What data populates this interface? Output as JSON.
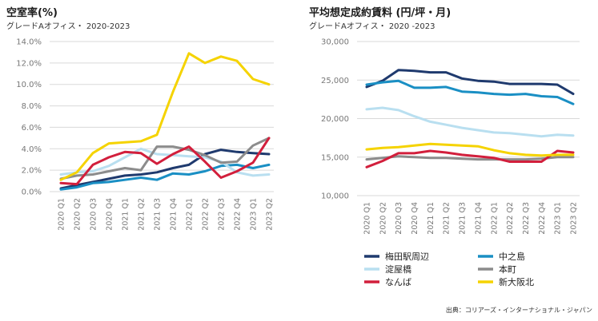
{
  "chart_data": [
    {
      "type": "line",
      "title": "空室率(%)",
      "subtitle": "グレードAオフィス・ 2020-2023",
      "ylim": [
        0,
        14
      ],
      "yticks": [
        "0.0%",
        "2.0%",
        "4.0%",
        "6.0%",
        "8.0%",
        "10.0%",
        "12.0%",
        "14.0%"
      ],
      "ytick_values": [
        0,
        2,
        4,
        6,
        8,
        10,
        12,
        14
      ],
      "categories": [
        "2020 Q1",
        "2020 Q2",
        "2020 Q3",
        "2020 Q4",
        "2021 Q1",
        "2021 Q2",
        "2021 Q3",
        "2021 Q4",
        "2022 Q1",
        "2022 Q2",
        "2022 Q3",
        "2022 Q4",
        "2023 Q1",
        "2023 Q2"
      ],
      "series": [
        {
          "name": "梅田駅周辺",
          "color": "#1f3a6e",
          "values": [
            0.3,
            0.6,
            0.9,
            1.2,
            1.5,
            1.6,
            1.8,
            2.2,
            2.5,
            3.5,
            3.9,
            3.7,
            3.6,
            3.5
          ]
        },
        {
          "name": "中之島",
          "color": "#1a8fc4",
          "values": [
            0.2,
            0.4,
            0.8,
            0.9,
            1.1,
            1.3,
            1.1,
            1.7,
            1.6,
            1.9,
            2.4,
            2.5,
            2.2,
            2.5
          ]
        },
        {
          "name": "淀屋橋",
          "color": "#b9dff0",
          "values": [
            1.6,
            1.8,
            1.9,
            2.4,
            3.2,
            4.0,
            3.5,
            3.4,
            3.3,
            3.2,
            2.8,
            1.8,
            1.5,
            1.6
          ]
        },
        {
          "name": "本町",
          "color": "#8c8c8c",
          "values": [
            1.2,
            1.5,
            1.6,
            1.9,
            2.2,
            2.0,
            4.2,
            4.2,
            3.9,
            3.4,
            2.7,
            2.8,
            4.3,
            5.0
          ]
        },
        {
          "name": "なんば",
          "color": "#d21f3c",
          "values": [
            0.8,
            0.7,
            2.5,
            3.2,
            3.7,
            3.6,
            2.6,
            3.5,
            4.2,
            2.8,
            1.3,
            1.9,
            2.7,
            5.0
          ]
        },
        {
          "name": "新大阪北",
          "color": "#f5d300",
          "values": [
            1.1,
            1.8,
            3.6,
            4.5,
            4.6,
            4.7,
            5.3,
            9.3,
            12.9,
            12.0,
            12.6,
            12.2,
            10.5,
            10.0
          ]
        }
      ]
    },
    {
      "type": "line",
      "title": "平均想定成約賃料 (円/坪・月)",
      "subtitle": "グレードAオフィス・ 2020 -2023",
      "ylim": [
        10000,
        30000
      ],
      "yticks": [
        "10,000",
        "15,000",
        "20,000",
        "25,000",
        "30,000"
      ],
      "ytick_values": [
        10000,
        15000,
        20000,
        25000,
        30000
      ],
      "categories": [
        "2020 Q1",
        "2020 Q2",
        "2020 Q3",
        "2020 Q4",
        "2021 Q1",
        "2021 Q2",
        "2021 Q3",
        "2021 Q4",
        "2022 Q1",
        "2022 Q2",
        "2022 Q3",
        "2022 Q4",
        "2023 Q1",
        "2023 Q2"
      ],
      "series": [
        {
          "name": "梅田駅周辺",
          "color": "#1f3a6e",
          "values": [
            24100,
            24900,
            26300,
            26200,
            26000,
            26000,
            25200,
            24900,
            24800,
            24500,
            24500,
            24500,
            24400,
            23200
          ]
        },
        {
          "name": "中之島",
          "color": "#1a8fc4",
          "values": [
            24400,
            24700,
            24900,
            24000,
            24000,
            24100,
            23500,
            23400,
            23200,
            23100,
            23200,
            22900,
            22800,
            21900
          ]
        },
        {
          "name": "淀屋橋",
          "color": "#b9dff0",
          "values": [
            21200,
            21400,
            21100,
            20300,
            19600,
            19200,
            18800,
            18500,
            18200,
            18100,
            17900,
            17700,
            17900,
            17800
          ]
        },
        {
          "name": "本町",
          "color": "#8c8c8c",
          "values": [
            14700,
            14900,
            15100,
            15000,
            14900,
            14900,
            14800,
            14700,
            14700,
            14700,
            14700,
            14800,
            15000,
            15000
          ]
        },
        {
          "name": "なんば",
          "color": "#d21f3c",
          "values": [
            13700,
            14500,
            15500,
            15500,
            15800,
            15600,
            15300,
            15100,
            14900,
            14400,
            14400,
            14400,
            15800,
            15600
          ]
        },
        {
          "name": "新大阪北",
          "color": "#f5d300",
          "values": [
            16000,
            16200,
            16300,
            16500,
            16700,
            16600,
            16500,
            16400,
            15900,
            15500,
            15300,
            15200,
            15300,
            15300
          ]
        }
      ]
    }
  ],
  "legend": {
    "items": [
      {
        "name": "梅田駅周辺",
        "color": "#1f3a6e"
      },
      {
        "name": "中之島",
        "color": "#1a8fc4"
      },
      {
        "name": "淀屋橋",
        "color": "#b9dff0"
      },
      {
        "name": "本町",
        "color": "#8c8c8c"
      },
      {
        "name": "なんば",
        "color": "#d21f3c"
      },
      {
        "name": "新大阪北",
        "color": "#f5d300"
      }
    ]
  },
  "source": "出典：コリアーズ・インターナショナル・ジャパン"
}
